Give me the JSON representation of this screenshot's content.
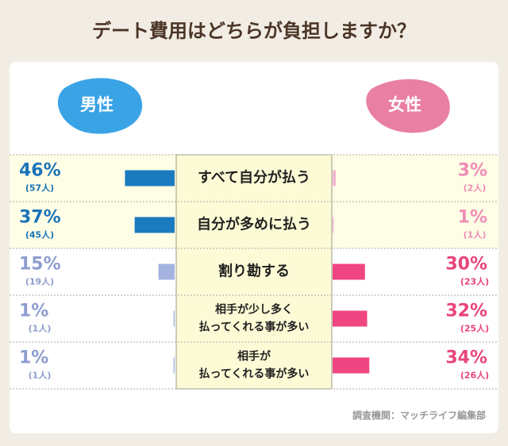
{
  "chart_data": {
    "type": "butterfly-bar",
    "title": "デート費用はどちらが負担しますか？",
    "categories": [
      [
        "すべて自分が払う"
      ],
      [
        "自分が多めに払う"
      ],
      [
        "割り勘する"
      ],
      [
        "相手が少し多く",
        "払ってくれる事が多い"
      ],
      [
        "相手が",
        "払ってくれる事が多い"
      ]
    ],
    "xlim": [
      0,
      100
    ],
    "series": [
      {
        "name": "男性",
        "side": "left",
        "color": "#3aa3e6",
        "colors": [
          "#1a7bbf",
          "#1a7bbf",
          "#a3b3de",
          "#a3b3de",
          "#a3b3de"
        ],
        "label_colors": [
          "#1b73b8",
          "#1b73b8",
          "#8e9dd0",
          "#8e9dd0",
          "#8e9dd0"
        ],
        "values": [
          46,
          37,
          15,
          1,
          1
        ],
        "value_labels": [
          "46%",
          "37%",
          "15%",
          "1%",
          "1%"
        ],
        "count_labels": [
          "(57人)",
          "(45人)",
          "(19人)",
          "(1人)",
          "(1人)"
        ]
      },
      {
        "name": "女性",
        "side": "right",
        "color": "#e97fa3",
        "colors": [
          "#f3b8d2",
          "#f3b8d2",
          "#ef4580",
          "#ef4580",
          "#ef4580"
        ],
        "label_colors": [
          "#f08cb6",
          "#f08cb6",
          "#e8457a",
          "#e8457a",
          "#e8457a"
        ],
        "values": [
          3,
          1,
          30,
          32,
          34
        ],
        "value_labels": [
          "3%",
          "1%",
          "30%",
          "32%",
          "34%"
        ],
        "count_labels": [
          "(2人)",
          "(1人)",
          "(23人)",
          "(25人)",
          "(26人)"
        ]
      }
    ],
    "source": "調査機関：マッチライフ編集部"
  }
}
